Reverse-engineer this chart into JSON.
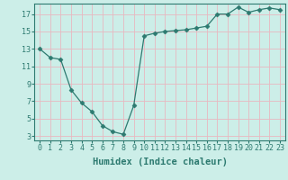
{
  "x": [
    0,
    1,
    2,
    3,
    4,
    5,
    6,
    7,
    8,
    9,
    10,
    11,
    12,
    13,
    14,
    15,
    16,
    17,
    18,
    19,
    20,
    21,
    22,
    23
  ],
  "y": [
    13,
    12,
    11.8,
    8.3,
    6.8,
    5.8,
    4.2,
    3.5,
    3.2,
    6.5,
    14.5,
    14.8,
    15.0,
    15.1,
    15.2,
    15.4,
    15.6,
    17.0,
    17.0,
    17.8,
    17.2,
    17.5,
    17.7,
    17.5
  ],
  "line_color": "#2d7a70",
  "marker": "D",
  "marker_size": 2.5,
  "bg_color": "#cceee8",
  "grid_color": "#e8b8c0",
  "xlabel": "Humidex (Indice chaleur)",
  "xlim": [
    -0.5,
    23.5
  ],
  "ylim": [
    2.5,
    18.2
  ],
  "yticks": [
    3,
    5,
    7,
    9,
    11,
    13,
    15,
    17
  ],
  "xticks": [
    0,
    1,
    2,
    3,
    4,
    5,
    6,
    7,
    8,
    9,
    10,
    11,
    12,
    13,
    14,
    15,
    16,
    17,
    18,
    19,
    20,
    21,
    22,
    23
  ],
  "tick_color": "#2d7a70",
  "xlabel_fontsize": 7.5,
  "tick_fontsize": 6.0
}
